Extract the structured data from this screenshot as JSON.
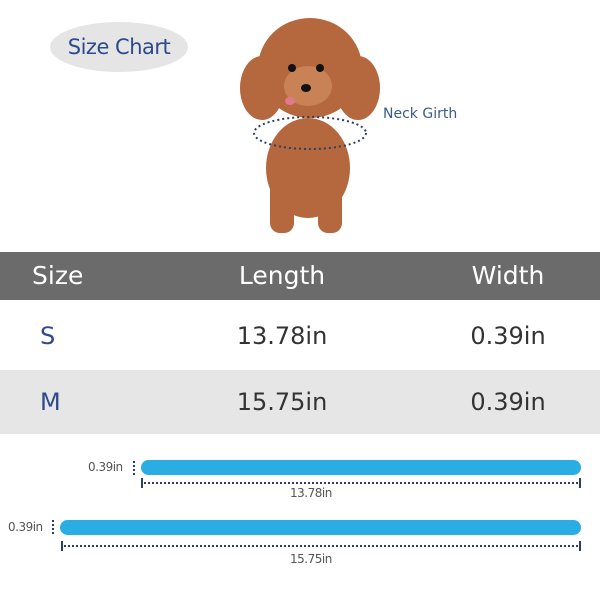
{
  "title": "Size Chart",
  "neck_label": "Neck Girth",
  "table": {
    "headers": [
      "Size",
      "Length",
      "Width"
    ],
    "rows": [
      {
        "size": "S",
        "length": "13.78in",
        "width": "0.39in"
      },
      {
        "size": "M",
        "length": "15.75in",
        "width": "0.39in"
      }
    ]
  },
  "straps": [
    {
      "width": "0.39in",
      "length": "13.78in"
    },
    {
      "width": "0.39in",
      "length": "15.75in"
    }
  ],
  "colors": {
    "header_bg": "#6b6b6b",
    "accent": "#2c4a8c",
    "strap": "#29ade3",
    "alt_row": "#e6e6e6"
  }
}
